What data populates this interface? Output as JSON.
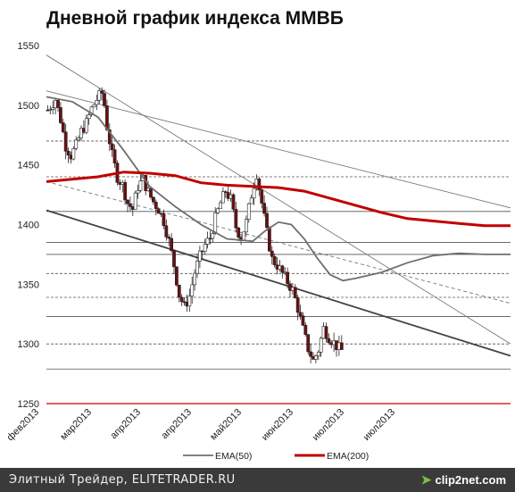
{
  "chart_data": {
    "type": "candlestick",
    "title": "Дневной график индекса ММВБ",
    "ylim": [
      1250,
      1550
    ],
    "yticks": [
      1250,
      1300,
      1350,
      1400,
      1450,
      1500,
      1550
    ],
    "xticks": [
      "фев2013",
      "мар2013",
      "апр2013",
      "апр2013",
      "май2013",
      "июн2013",
      "июл2013",
      "июл2013"
    ],
    "n_bars": 115,
    "legend": [
      {
        "name": "EMA(50)",
        "color": "#6e6e6e"
      },
      {
        "name": "EMA(200)",
        "color": "#c00000"
      }
    ],
    "levels": [
      1279,
      1300,
      1323,
      1339,
      1359,
      1375,
      1385,
      1411,
      1440,
      1470
    ],
    "red_level": 1250,
    "close_points": [
      [
        0,
        1496
      ],
      [
        3,
        1505
      ],
      [
        5,
        1488
      ],
      [
        7,
        1466
      ],
      [
        9,
        1458
      ],
      [
        11,
        1466
      ],
      [
        13,
        1478
      ],
      [
        15,
        1485
      ],
      [
        17,
        1497
      ],
      [
        19,
        1505
      ],
      [
        21,
        1510
      ],
      [
        22,
        1500
      ],
      [
        23,
        1482
      ],
      [
        25,
        1458
      ],
      [
        27,
        1440
      ],
      [
        29,
        1433
      ],
      [
        31,
        1418
      ],
      [
        33,
        1413
      ],
      [
        35,
        1432
      ],
      [
        37,
        1438
      ],
      [
        39,
        1427
      ],
      [
        41,
        1419
      ],
      [
        43,
        1413
      ],
      [
        45,
        1403
      ],
      [
        47,
        1386
      ],
      [
        49,
        1366
      ],
      [
        51,
        1341
      ],
      [
        53,
        1331
      ],
      [
        55,
        1340
      ],
      [
        57,
        1360
      ],
      [
        59,
        1373
      ],
      [
        61,
        1383
      ],
      [
        63,
        1389
      ],
      [
        65,
        1405
      ],
      [
        67,
        1418
      ],
      [
        69,
        1428
      ],
      [
        71,
        1421
      ],
      [
        73,
        1398
      ],
      [
        75,
        1389
      ],
      [
        77,
        1402
      ],
      [
        79,
        1425
      ],
      [
        81,
        1443
      ],
      [
        83,
        1418
      ],
      [
        85,
        1393
      ],
      [
        87,
        1371
      ],
      [
        89,
        1366
      ],
      [
        91,
        1359
      ],
      [
        93,
        1352
      ],
      [
        95,
        1345
      ],
      [
        97,
        1330
      ],
      [
        99,
        1312
      ],
      [
        101,
        1296
      ],
      [
        103,
        1286
      ],
      [
        105,
        1295
      ],
      [
        107,
        1313
      ],
      [
        109,
        1306
      ],
      [
        111,
        1301
      ],
      [
        113,
        1296
      ],
      [
        115,
        1293
      ]
    ],
    "ema50": [
      [
        0,
        1507
      ],
      [
        10,
        1503
      ],
      [
        20,
        1490
      ],
      [
        30,
        1462
      ],
      [
        40,
        1432
      ],
      [
        50,
        1415
      ],
      [
        60,
        1400
      ],
      [
        70,
        1388
      ],
      [
        80,
        1386
      ],
      [
        85,
        1395
      ],
      [
        90,
        1402
      ],
      [
        95,
        1400
      ],
      [
        100,
        1388
      ],
      [
        105,
        1372
      ],
      [
        110,
        1358
      ],
      [
        115,
        1353
      ],
      [
        120,
        1355
      ],
      [
        130,
        1360
      ],
      [
        140,
        1368
      ],
      [
        150,
        1374
      ],
      [
        160,
        1376
      ],
      [
        170,
        1375
      ],
      [
        180,
        1375
      ]
    ],
    "ema200": [
      [
        0,
        1436
      ],
      [
        20,
        1440
      ],
      [
        30,
        1444
      ],
      [
        40,
        1443
      ],
      [
        50,
        1441
      ],
      [
        60,
        1435
      ],
      [
        70,
        1433
      ],
      [
        80,
        1432
      ],
      [
        90,
        1431
      ],
      [
        100,
        1428
      ],
      [
        110,
        1422
      ],
      [
        120,
        1416
      ],
      [
        130,
        1410
      ],
      [
        140,
        1405
      ],
      [
        150,
        1403
      ],
      [
        160,
        1401
      ],
      [
        170,
        1399
      ],
      [
        180,
        1399
      ]
    ],
    "trendlines": [
      {
        "style": "solid-thin",
        "from": [
          0,
          1542
        ],
        "to": [
          180,
          1300
        ]
      },
      {
        "style": "solid-thin",
        "from": [
          0,
          1512
        ],
        "to": [
          180,
          1414
        ]
      },
      {
        "style": "solid-thick",
        "from": [
          0,
          1412
        ],
        "to": [
          180,
          1290
        ]
      },
      {
        "style": "dashed",
        "from": [
          0,
          1436
        ],
        "to": [
          180,
          1334
        ]
      }
    ]
  },
  "footer": {
    "text": "Элитный Трейдер, ELITETRADER.RU",
    "watermark": "clip2net.com"
  }
}
